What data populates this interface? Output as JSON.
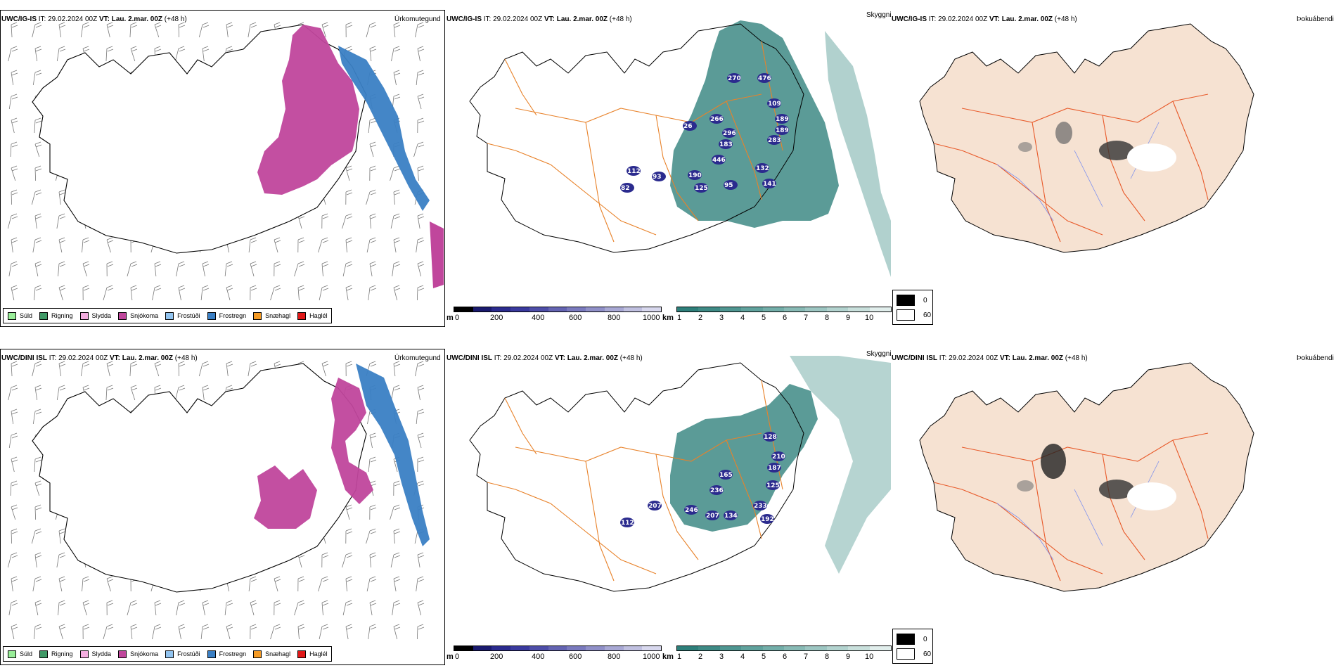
{
  "rows": [
    {
      "model_name": "UWC/IG-IS",
      "it_label": "IT:",
      "it_value": "29.02.2024 00Z",
      "vt_label": "VT:",
      "vt_value": "Lau. 2.mar. 00Z",
      "lead": "(+48 h)",
      "snow_depth_labels": [
        "270",
        "476",
        "109",
        "266",
        "189",
        "296",
        "189",
        "183",
        "283",
        "446",
        "132",
        "190",
        "125",
        "95",
        "141",
        "112",
        "93",
        "82",
        "26"
      ],
      "ptype_coverage": "east-central snow, eastern coastal freezing rain",
      "cloud_coverage": "east and south-east"
    },
    {
      "model_name": "UWC/DINI ISL",
      "it_label": "IT:",
      "it_value": "29.02.2024 00Z",
      "vt_label": "VT:",
      "vt_value": "Lau. 2.mar. 00Z",
      "lead": "(+48 h)",
      "snow_depth_labels": [
        "128",
        "210",
        "187",
        "165",
        "125",
        "236",
        "233",
        "246",
        "207",
        "134",
        "192",
        "207",
        "112"
      ],
      "ptype_coverage": "central and east snow, eastern coastal freezing rain",
      "cloud_coverage": "east and south-east"
    }
  ],
  "panel_titles": {
    "precip_type": "Úrkomutegund",
    "visibility": "Skyggni",
    "fog": "Þokuábendi"
  },
  "precip_legend": [
    {
      "label": "Súld",
      "color": "#99ee99"
    },
    {
      "label": "Rigning",
      "color": "#3f9966"
    },
    {
      "label": "Slydda",
      "color": "#f4aee0"
    },
    {
      "label": "Snjókoma",
      "color": "#c0469c"
    },
    {
      "label": "Frostúði",
      "color": "#92c4f0"
    },
    {
      "label": "Frostregn",
      "color": "#3a7fc4"
    },
    {
      "label": "Snæhagl",
      "color": "#f49a24"
    },
    {
      "label": "Haglél",
      "color": "#e01818"
    }
  ],
  "snow_colorbar": {
    "unit": "m",
    "ticks": [
      "0",
      "200",
      "400",
      "600",
      "800",
      "1000"
    ],
    "colors": [
      "#000000",
      "#1a1a6e",
      "#2b2b8e",
      "#3a3a9e",
      "#4e4ea8",
      "#6464b2",
      "#7a7abe",
      "#9090c8",
      "#a8a8d4",
      "#c0c0e0",
      "#d8d8ee"
    ]
  },
  "vis_colorbar": {
    "unit": "km",
    "ticks": [
      "1",
      "2",
      "3",
      "4",
      "5",
      "6",
      "7",
      "8",
      "9",
      "10"
    ],
    "colors": [
      "#2e7f7a",
      "#3e8a85",
      "#4f9691",
      "#60a29d",
      "#73aea9",
      "#88bab5",
      "#9dc6c2",
      "#b3d3cf",
      "#c9e0dc",
      "#e1eeec"
    ]
  },
  "fog_legend": [
    {
      "label": "0",
      "color": "#000000"
    },
    {
      "label": "60",
      "color": "#ffffff"
    }
  ]
}
